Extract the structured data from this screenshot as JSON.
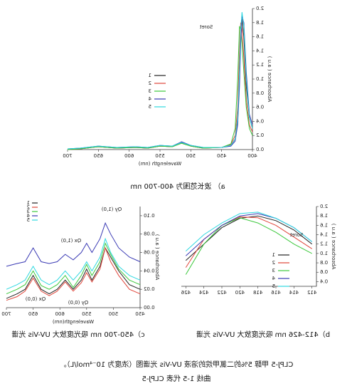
{
  "chart_data": [
    {
      "type": "line",
      "caption": "a） 波长范围为 400-700 nm",
      "x_label": "Wavelength (nm)",
      "y_label": "Absorbance ( a.u )",
      "annotations": [
        "Soret"
      ],
      "x": [
        400,
        405,
        410,
        414,
        417,
        419,
        421,
        424,
        428,
        435,
        450,
        480,
        500,
        515,
        530,
        550,
        570,
        590,
        620,
        650,
        680,
        700
      ],
      "xlim": [
        400,
        700
      ],
      "xticks": [
        400,
        450,
        500,
        550,
        600,
        650,
        700
      ],
      "ylim": [
        0,
        2.0
      ],
      "yticks": [
        {
          "value": 0,
          "label": "0.0"
        },
        0.2,
        0.4,
        0.6,
        0.8,
        {
          "value": 1,
          "label": "1.0"
        },
        1.2,
        1.4,
        1.6,
        1.8,
        {
          "value": 2,
          "label": "2.0"
        }
      ],
      "series": [
        {
          "name": "1",
          "color": "#222222",
          "values": [
            0.3,
            0.45,
            0.9,
            1.6,
            1.85,
            1.6,
            1.0,
            0.4,
            0.15,
            0.06,
            0.03,
            0.02,
            0.05,
            0.1,
            0.04,
            0.05,
            0.02,
            0.03,
            0.02,
            0.04,
            0.01,
            0.0
          ]
        },
        {
          "name": "2",
          "color": "#e0453a",
          "values": [
            0.25,
            0.35,
            0.7,
            1.3,
            1.7,
            1.8,
            1.4,
            0.6,
            0.2,
            0.07,
            0.03,
            0.02,
            0.05,
            0.09,
            0.04,
            0.05,
            0.02,
            0.03,
            0.02,
            0.04,
            0.01,
            0.0
          ]
        },
        {
          "name": "3",
          "color": "#3cc83c",
          "values": [
            0.2,
            0.3,
            0.6,
            1.1,
            1.5,
            1.7,
            1.75,
            1.0,
            0.3,
            0.08,
            0.03,
            0.02,
            0.05,
            0.09,
            0.04,
            0.05,
            0.02,
            0.03,
            0.02,
            0.04,
            0.01,
            0.0
          ]
        },
        {
          "name": "4",
          "color": "#3a3ab4",
          "values": [
            0.35,
            0.5,
            1.1,
            1.8,
            1.9,
            1.5,
            0.9,
            0.35,
            0.12,
            0.05,
            0.03,
            0.03,
            0.06,
            0.11,
            0.05,
            0.06,
            0.03,
            0.04,
            0.03,
            0.05,
            0.02,
            0.01
          ]
        },
        {
          "name": "5",
          "color": "#2fd8e0",
          "values": [
            0.3,
            0.45,
            1.0,
            1.75,
            1.95,
            1.7,
            1.1,
            0.45,
            0.15,
            0.06,
            0.03,
            0.03,
            0.06,
            0.1,
            0.05,
            0.06,
            0.03,
            0.04,
            0.03,
            0.05,
            0.02,
            0.01
          ]
        }
      ]
    },
    {
      "type": "line",
      "caption": "b）412-426 nm 吸光度放大 UV-Vis 光谱",
      "y_label": "Absorbance ( a.u )",
      "annotations": [
        "Soret"
      ],
      "x": [
        412,
        414,
        416,
        418,
        420,
        422,
        424,
        426
      ],
      "xlim": [
        411.5,
        426.5
      ],
      "xticks": [
        412,
        414,
        416,
        418,
        420,
        422,
        424,
        426
      ],
      "ylim": [
        0.3,
        2.0
      ],
      "yticks": [
        0.4,
        0.6,
        0.8,
        {
          "value": 1,
          "label": "1.0"
        },
        1.2,
        1.4,
        1.6,
        1.8,
        {
          "value": 2,
          "label": "2.0"
        }
      ],
      "series": [
        {
          "name": "1",
          "color": "#222222",
          "values": [
            1.2,
            1.5,
            1.7,
            1.8,
            1.75,
            1.55,
            1.2,
            0.85
          ]
        },
        {
          "name": "2",
          "color": "#e0453a",
          "values": [
            1.1,
            1.35,
            1.6,
            1.76,
            1.78,
            1.6,
            1.3,
            0.7
          ]
        },
        {
          "name": "3",
          "color": "#3cc83c",
          "values": [
            1.0,
            1.2,
            1.45,
            1.65,
            1.76,
            1.6,
            1.2,
            0.55
          ]
        },
        {
          "name": "4",
          "color": "#3a3ab4",
          "values": [
            1.25,
            1.55,
            1.75,
            1.85,
            1.8,
            1.6,
            1.3,
            0.95
          ]
        },
        {
          "name": "5",
          "color": "#2fd8e0",
          "values": [
            1.25,
            1.55,
            1.75,
            1.88,
            1.85,
            1.65,
            1.4,
            1.05
          ]
        }
      ]
    },
    {
      "type": "line",
      "caption": "c）450-700 nm 吸光度放大 UV-Vis 光谱",
      "x_label": "Wavelength(nm)",
      "y_label": "Absorbance ( a.u )",
      "annotations": [
        "Qy (1,0)",
        "Qy (0,0)",
        "Qx (1,0)",
        "Qx (0,0)"
      ],
      "x": [
        450,
        470,
        490,
        505,
        515,
        525,
        540,
        550,
        560,
        575,
        590,
        605,
        620,
        635,
        650,
        665,
        680,
        700
      ],
      "xlim": [
        450,
        700
      ],
      "xticks": [
        450,
        500,
        550,
        600,
        650,
        700
      ],
      "ylim": [
        0,
        0.11
      ],
      "yticks": [
        {
          "value": 0,
          "label": "0.00"
        },
        0.02,
        0.04,
        0.06,
        0.08,
        {
          "value": 0.1,
          "label": "0.10"
        }
      ],
      "series": [
        {
          "name": "1",
          "color": "#222222",
          "values": [
            0.02,
            0.025,
            0.04,
            0.055,
            0.065,
            0.045,
            0.03,
            0.042,
            0.03,
            0.02,
            0.03,
            0.02,
            0.015,
            0.02,
            0.035,
            0.02,
            0.015,
            0.01
          ]
        },
        {
          "name": "2",
          "color": "#e0453a",
          "values": [
            0.015,
            0.02,
            0.035,
            0.05,
            0.065,
            0.042,
            0.028,
            0.038,
            0.027,
            0.018,
            0.028,
            0.018,
            0.013,
            0.018,
            0.032,
            0.018,
            0.012,
            0.008
          ]
        },
        {
          "name": "3",
          "color": "#3cc83c",
          "values": [
            0.025,
            0.03,
            0.042,
            0.058,
            0.07,
            0.05,
            0.035,
            0.047,
            0.035,
            0.022,
            0.035,
            0.025,
            0.02,
            0.024,
            0.04,
            0.025,
            0.02,
            0.015
          ]
        },
        {
          "name": "4",
          "color": "#3a3ab4",
          "values": [
            0.05,
            0.055,
            0.065,
            0.08,
            0.092,
            0.075,
            0.06,
            0.07,
            0.06,
            0.052,
            0.058,
            0.05,
            0.048,
            0.05,
            0.065,
            0.05,
            0.048,
            0.045
          ]
        },
        {
          "name": "5",
          "color": "#2fd8e0",
          "values": [
            0.03,
            0.035,
            0.045,
            0.06,
            0.075,
            0.055,
            0.04,
            0.05,
            0.04,
            0.03,
            0.04,
            0.03,
            0.025,
            0.03,
            0.045,
            0.03,
            0.025,
            0.02
          ]
        }
      ]
    }
  ],
  "figure_caption": [
    "CLPJ-5 甲醇 5%的二氯甲烷的溶液 UV-Vis 光谱图（浓度为 10⁻⁴mol/L）。",
    "曲线 1-5 代表 CLPJ-5"
  ]
}
